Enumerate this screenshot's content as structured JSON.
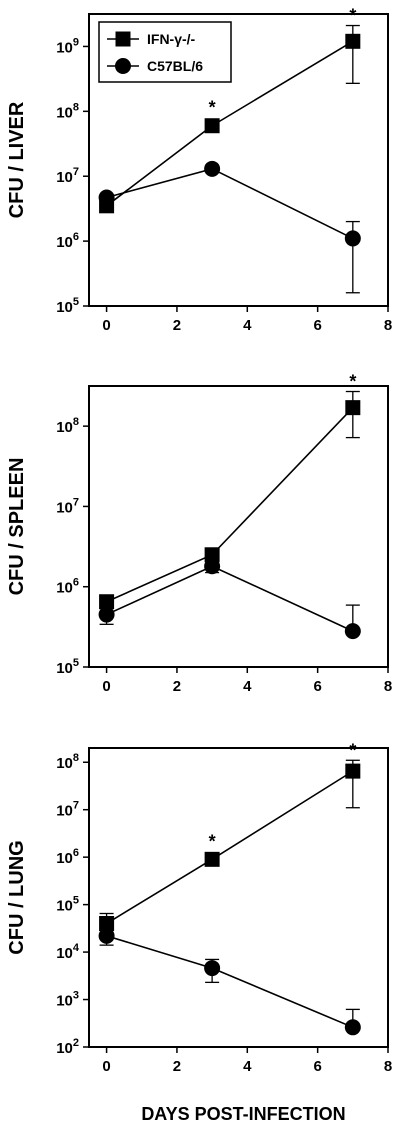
{
  "figure": {
    "x_axis_title": "DAYS POST-INFECTION"
  },
  "legend": [
    {
      "label": "IFN-γ-/-",
      "marker": "square"
    },
    {
      "label": "C57BL/6",
      "marker": "circle"
    }
  ],
  "chart_data": [
    {
      "type": "line",
      "panel": "liver",
      "ylabel": "CFU / LIVER",
      "xlabel": "",
      "y_scale": "log",
      "ylim_exp": [
        5,
        9.5
      ],
      "y_tick_exps": [
        5,
        6,
        7,
        8,
        9
      ],
      "xlim": [
        -0.5,
        8
      ],
      "x_ticks": [
        0,
        2,
        4,
        6,
        8
      ],
      "legend_position": "top-left",
      "series": [
        {
          "name": "IFN-γ-/-",
          "marker": "square",
          "points": [
            {
              "x": 0,
              "y": 3500000.0,
              "err_lo": null,
              "err_hi": null,
              "star": false
            },
            {
              "x": 3,
              "y": 60000000.0,
              "err_lo": null,
              "err_hi": null,
              "star": true
            },
            {
              "x": 7,
              "y": 1200000000.0,
              "err_lo": 270000000.0,
              "err_hi": 2100000000.0,
              "star": true
            }
          ]
        },
        {
          "name": "C57BL/6",
          "marker": "circle",
          "points": [
            {
              "x": 0,
              "y": 4700000.0,
              "err_lo": null,
              "err_hi": null,
              "star": false
            },
            {
              "x": 3,
              "y": 13000000.0,
              "err_lo": null,
              "err_hi": null,
              "star": false
            },
            {
              "x": 7,
              "y": 1100000.0,
              "err_lo": 160000.0,
              "err_hi": 2000000.0,
              "star": false
            }
          ]
        }
      ]
    },
    {
      "type": "line",
      "panel": "spleen",
      "ylabel": "CFU / SPLEEN",
      "xlabel": "",
      "y_scale": "log",
      "ylim_exp": [
        5,
        8.5
      ],
      "y_tick_exps": [
        5,
        6,
        7,
        8
      ],
      "xlim": [
        -0.5,
        8
      ],
      "x_ticks": [
        0,
        2,
        4,
        6,
        8
      ],
      "series": [
        {
          "name": "IFN-γ-/-",
          "marker": "square",
          "points": [
            {
              "x": 0,
              "y": 650000.0,
              "err_lo": null,
              "err_hi": null,
              "star": false
            },
            {
              "x": 3,
              "y": 2500000.0,
              "err_lo": null,
              "err_hi": null,
              "star": false
            },
            {
              "x": 7,
              "y": 170000000.0,
              "err_lo": 72000000.0,
              "err_hi": 270000000.0,
              "star": true
            }
          ]
        },
        {
          "name": "C57BL/6",
          "marker": "circle",
          "points": [
            {
              "x": 0,
              "y": 450000.0,
              "err_lo": 340000.0,
              "err_hi": null,
              "star": false
            },
            {
              "x": 3,
              "y": 1800000.0,
              "err_lo": 1500000.0,
              "err_hi": null,
              "star": false
            },
            {
              "x": 7,
              "y": 280000.0,
              "err_lo": null,
              "err_hi": 590000.0,
              "star": false
            }
          ]
        }
      ]
    },
    {
      "type": "line",
      "panel": "lung",
      "ylabel": "CFU / LUNG",
      "xlabel": "DAYS POST-INFECTION",
      "y_scale": "log",
      "ylim_exp": [
        2,
        8.3
      ],
      "y_tick_exps": [
        2,
        3,
        4,
        5,
        6,
        7,
        8
      ],
      "xlim": [
        -0.5,
        8
      ],
      "x_ticks": [
        0,
        2,
        4,
        6,
        8
      ],
      "series": [
        {
          "name": "IFN-γ-/-",
          "marker": "square",
          "points": [
            {
              "x": 0,
              "y": 40000.0,
              "err_lo": null,
              "err_hi": 65000.0,
              "star": false
            },
            {
              "x": 3,
              "y": 900000.0,
              "err_lo": null,
              "err_hi": null,
              "star": true
            },
            {
              "x": 7,
              "y": 65000000.0,
              "err_lo": 11000000.0,
              "err_hi": 110000000.0,
              "star": true
            }
          ]
        },
        {
          "name": "C57BL/6",
          "marker": "circle",
          "points": [
            {
              "x": 0,
              "y": 22000.0,
              "err_lo": 14000.0,
              "err_hi": null,
              "star": false
            },
            {
              "x": 3,
              "y": 4600.0,
              "err_lo": 2300.0,
              "err_hi": 7000.0,
              "star": false
            },
            {
              "x": 7,
              "y": 260.0,
              "err_lo": null,
              "err_hi": 620.0,
              "star": false
            }
          ]
        }
      ]
    }
  ]
}
